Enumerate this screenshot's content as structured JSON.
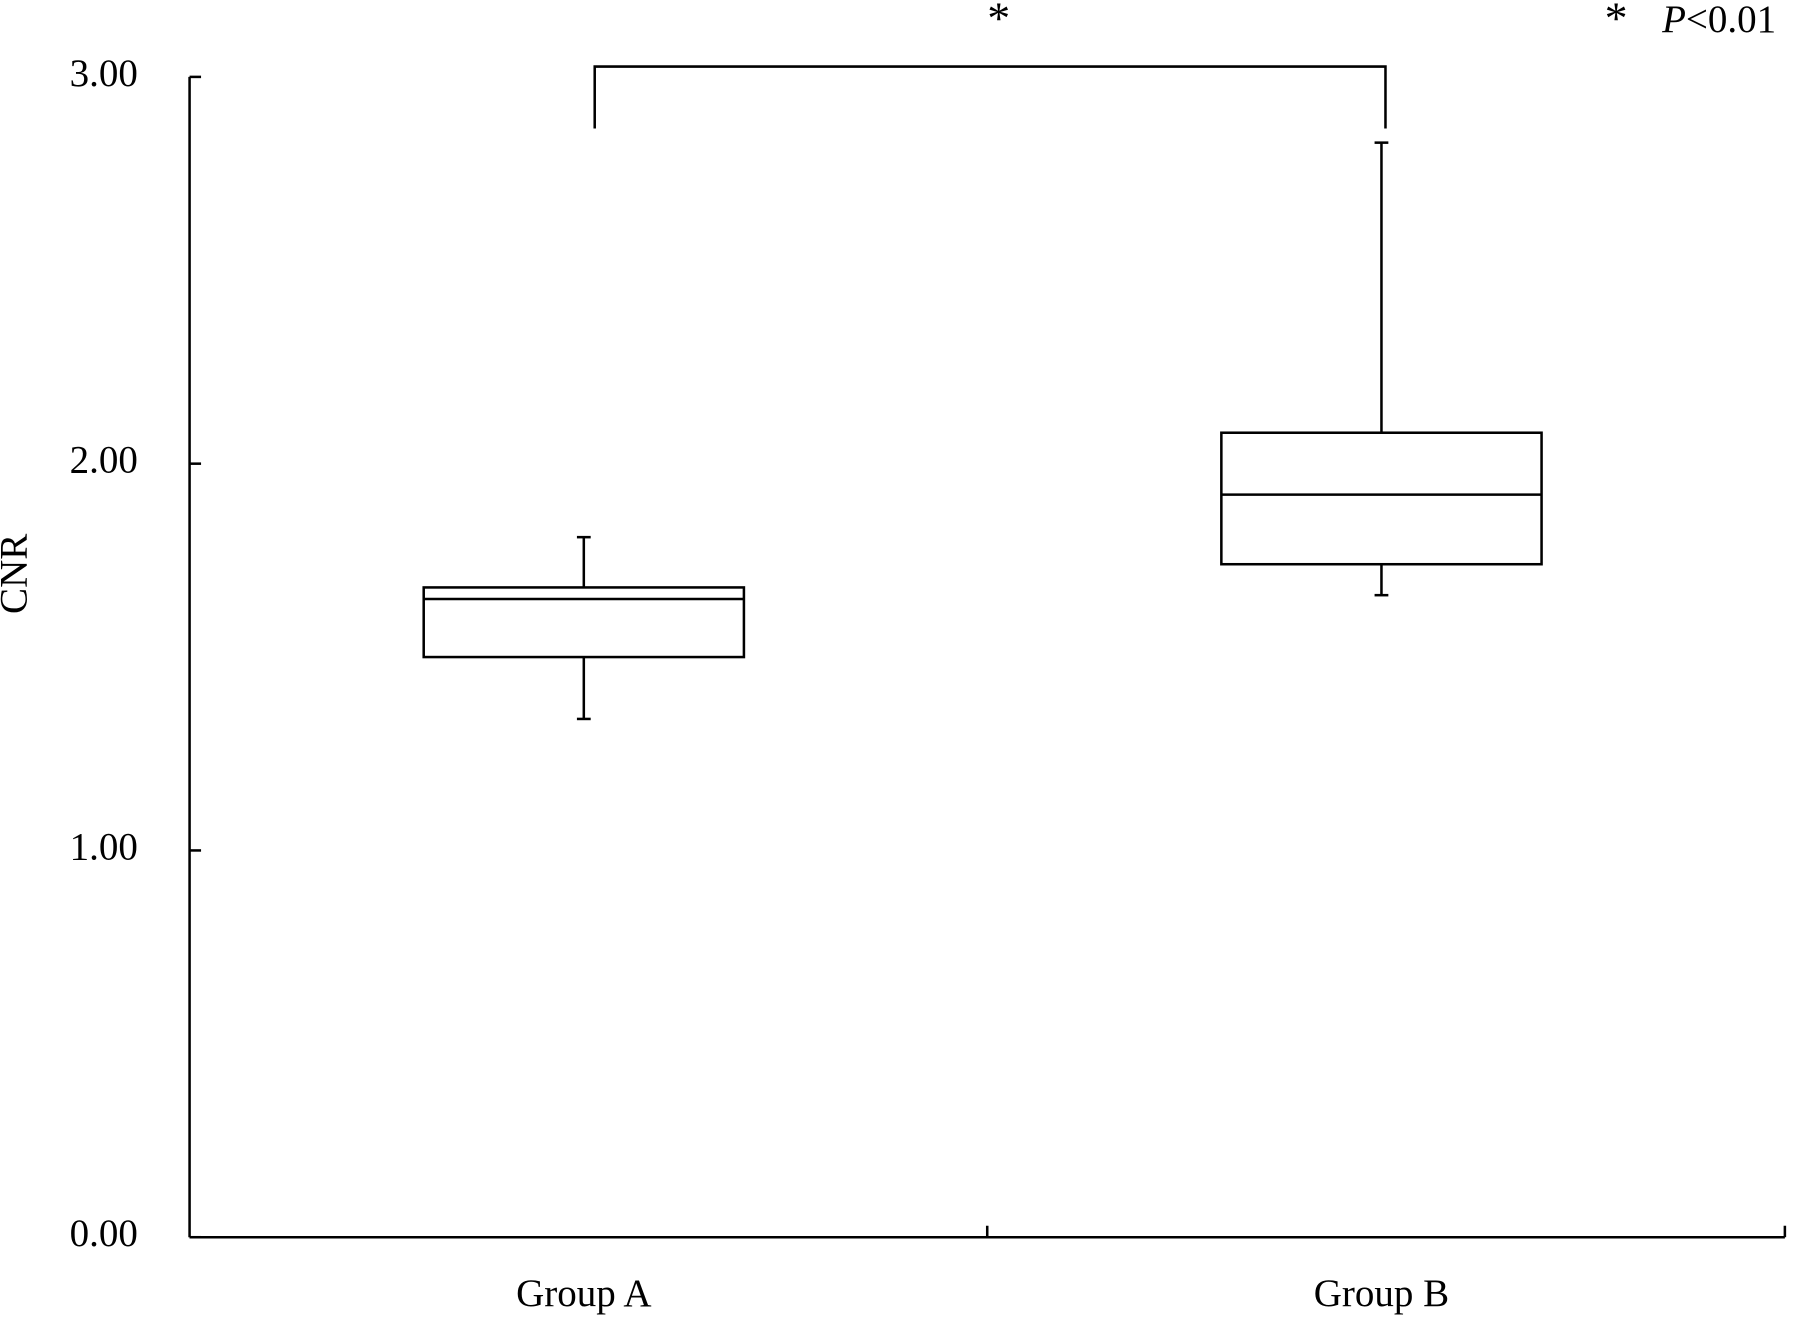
{
  "chart_data": {
    "type": "box",
    "y_label": "CNR",
    "categories": [
      "Group A",
      "Group B"
    ],
    "boxes": [
      {
        "whislo": 1.34,
        "q1": 1.5,
        "median": 1.65,
        "q3": 1.68,
        "whishi": 1.81
      },
      {
        "whislo": 1.66,
        "q1": 1.74,
        "median": 1.92,
        "q3": 2.08,
        "whishi": 2.83
      }
    ],
    "ylim": [
      0,
      3
    ],
    "yticks": [
      {
        "value": 0,
        "label": "0.00"
      },
      {
        "value": 1,
        "label": "1.00"
      },
      {
        "value": 2,
        "label": "2.00"
      },
      {
        "value": 3,
        "label": "3.00"
      }
    ],
    "significance_marker": "*",
    "note": {
      "marker": "*",
      "italic": "P",
      "text": "<0.01"
    },
    "color": "#000000"
  }
}
